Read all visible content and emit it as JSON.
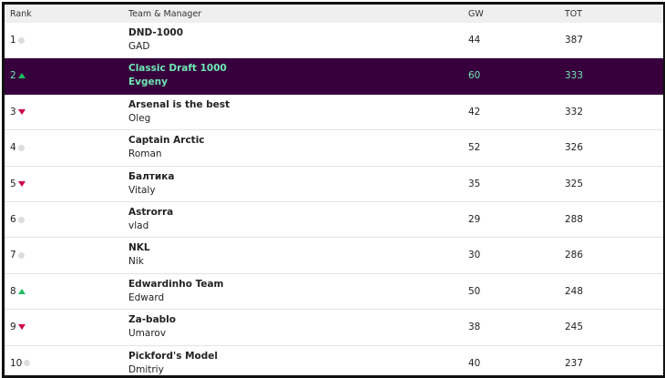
{
  "header": {
    "rank": "Rank",
    "team_manager": "Team & Manager",
    "gw": "GW",
    "tot": "TOT"
  },
  "colors": {
    "highlight_bg": "#37003c",
    "highlight_text": "#6fe8b4",
    "up": "#1fbf5f",
    "down": "#d1004d",
    "same": "#dddddd"
  },
  "rows": [
    {
      "rank": "1",
      "movement": "same",
      "team": "DND-1000",
      "manager": "GAD",
      "gw": "44",
      "tot": "387"
    },
    {
      "rank": "2",
      "movement": "up",
      "team": "Classic Draft 1000",
      "manager": "Evgeny",
      "gw": "60",
      "tot": "333",
      "highlighted": true
    },
    {
      "rank": "3",
      "movement": "down",
      "team": "Arsenal is the best",
      "manager": "Oleg",
      "gw": "42",
      "tot": "332"
    },
    {
      "rank": "4",
      "movement": "same",
      "team": "Captain Arctic",
      "manager": "Roman",
      "gw": "52",
      "tot": "326"
    },
    {
      "rank": "5",
      "movement": "down",
      "team": "Балтика",
      "manager": "Vitaly",
      "gw": "35",
      "tot": "325"
    },
    {
      "rank": "6",
      "movement": "same",
      "team": "Astrorra",
      "manager": "vlad",
      "gw": "29",
      "tot": "288"
    },
    {
      "rank": "7",
      "movement": "same",
      "team": "NKL",
      "manager": "Nik",
      "gw": "30",
      "tot": "286"
    },
    {
      "rank": "8",
      "movement": "up",
      "team": "Edwardinho Team",
      "manager": "Edward",
      "gw": "50",
      "tot": "248"
    },
    {
      "rank": "9",
      "movement": "down",
      "team": "Za-bablo",
      "manager": "Umarov",
      "gw": "38",
      "tot": "245"
    },
    {
      "rank": "10",
      "movement": "same",
      "team": "Pickford's Model",
      "manager": "Dmitriy",
      "gw": "40",
      "tot": "237"
    }
  ]
}
